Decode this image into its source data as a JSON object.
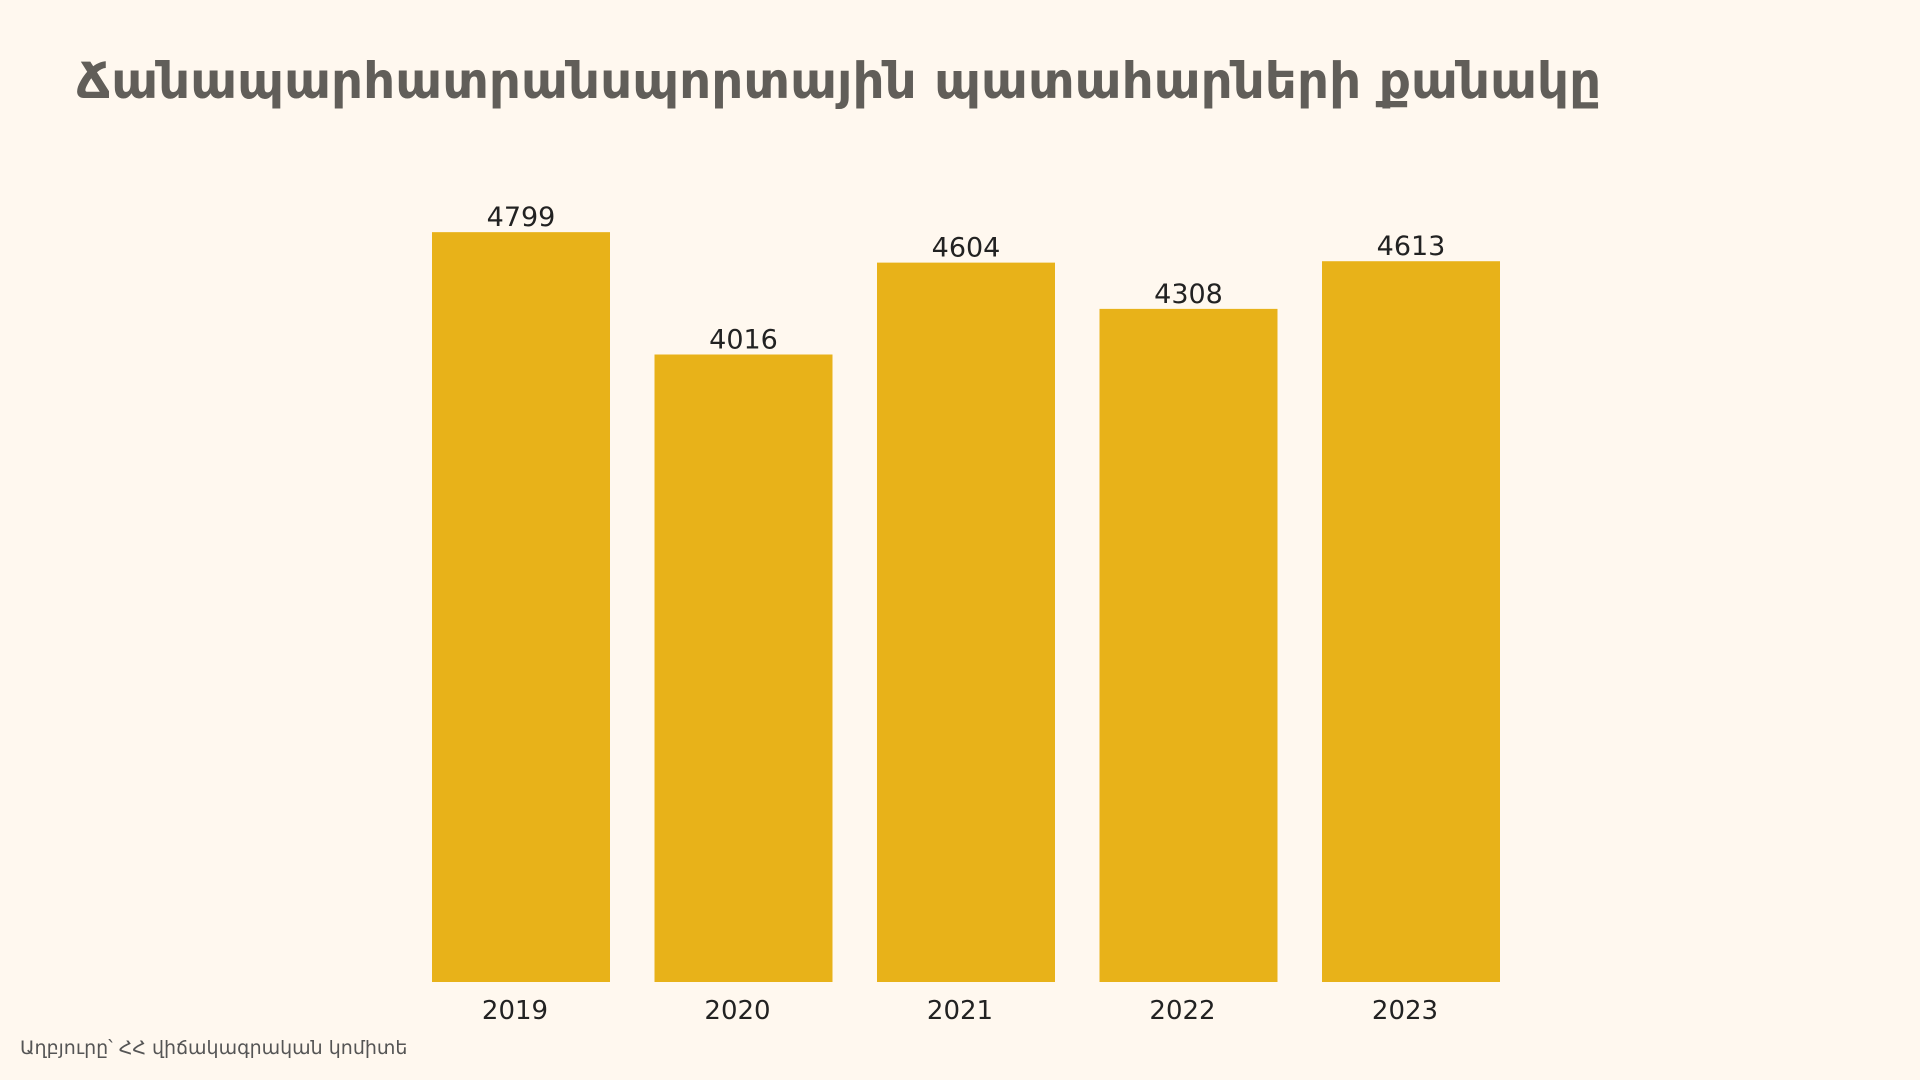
{
  "colors": {
    "background": "#fff8ef",
    "bar": "#e8b219",
    "title": "#615e59",
    "text": "#222222"
  },
  "source_note": "Աղբյուրը՝ ՀՀ վիճակագրական կոմիտե",
  "chart_data": {
    "type": "bar",
    "title": "Ճանապարհատրանսպորտային պատահարների քանակը",
    "xlabel": "",
    "ylabel": "",
    "categories": [
      "2019",
      "2020",
      "2021",
      "2022",
      "2023"
    ],
    "values": [
      4799,
      4016,
      4604,
      4308,
      4613
    ],
    "data_labels": [
      "4799",
      "4016",
      "4604",
      "4308",
      "4613"
    ],
    "ylim": [
      0,
      4800
    ],
    "grid": false,
    "legend": "none"
  }
}
